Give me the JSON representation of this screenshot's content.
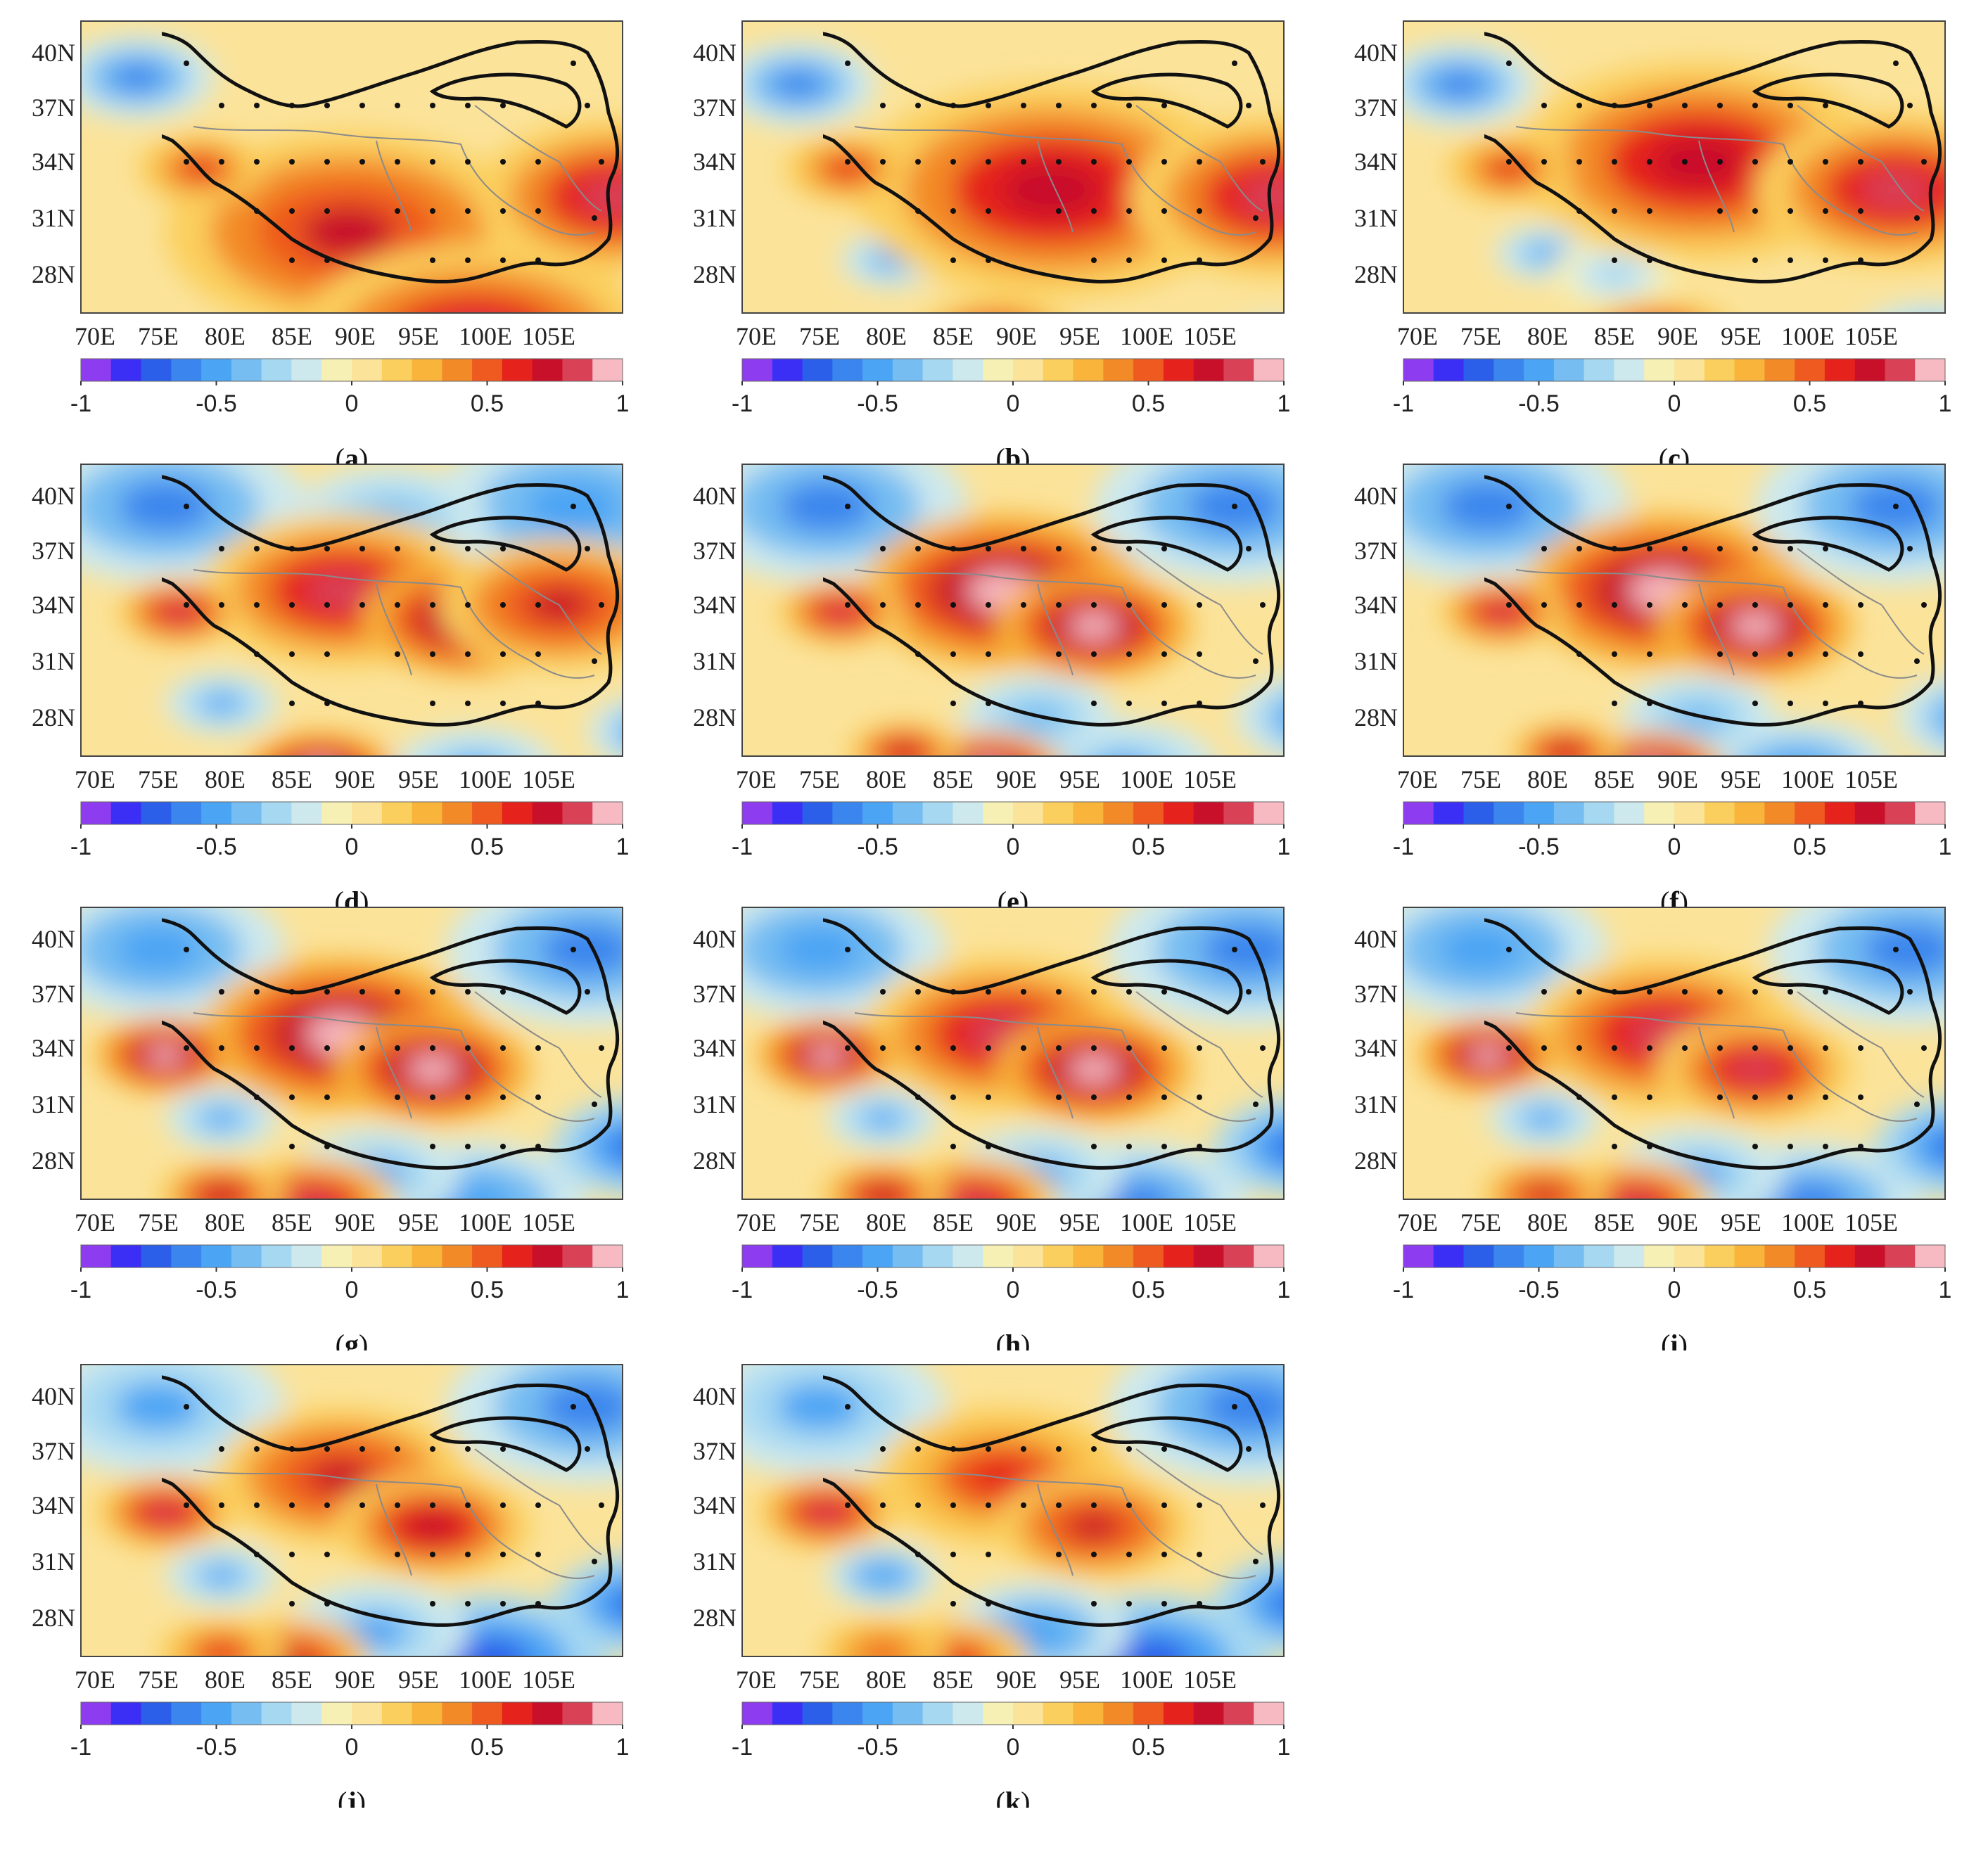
{
  "figure": {
    "lat_labels": [
      "40N",
      "37N",
      "34N",
      "31N",
      "28N"
    ],
    "lon_labels": [
      "70E",
      "75E",
      "80E",
      "85E",
      "90E",
      "95E",
      "100E",
      "105E"
    ],
    "colorbar": {
      "tick_labels": [
        "-1",
        "-0.5",
        "0",
        "0.5",
        "1"
      ],
      "range": [
        -1,
        1
      ],
      "colors": [
        "#8e3cf0",
        "#3b2ff5",
        "#2b5fe9",
        "#3b86ee",
        "#4ba4f4",
        "#76bdf2",
        "#a6d8f2",
        "#cde9ee",
        "#f6f0b4",
        "#fbe39a",
        "#fbcf5d",
        "#f8b43b",
        "#f38a28",
        "#ee5a1f",
        "#e5221c",
        "#c8102a",
        "#d94157",
        "#f7b9c2"
      ]
    },
    "panels": [
      {
        "label": "a",
        "hot": [
          [
            380,
            300,
            260,
            0.7
          ],
          [
            560,
            460,
            260,
            0.85
          ],
          [
            760,
            250,
            200,
            0.8
          ],
          [
            170,
            210,
            90,
            0.6
          ],
          [
            570,
            640,
            170,
            0.95
          ],
          [
            820,
            520,
            140,
            0.8
          ]
        ],
        "cold": [
          [
            80,
            80,
            110,
            0.6
          ],
          [
            200,
            300,
            70,
            0.4
          ],
          [
            830,
            330,
            80,
            0.3
          ]
        ]
      },
      {
        "label": "b",
        "hot": [
          [
            440,
            240,
            280,
            0.75
          ],
          [
            760,
            250,
            210,
            0.8
          ],
          [
            360,
            460,
            120,
            0.85
          ],
          [
            640,
            640,
            190,
            0.95
          ],
          [
            150,
            210,
            90,
            0.6
          ],
          [
            820,
            520,
            140,
            0.85
          ]
        ],
        "cold": [
          [
            80,
            90,
            110,
            0.6
          ],
          [
            210,
            340,
            70,
            0.5
          ],
          [
            760,
            470,
            80,
            0.45
          ]
        ]
      },
      {
        "label": "c",
        "hot": [
          [
            420,
            200,
            260,
            0.75
          ],
          [
            700,
            240,
            200,
            0.85
          ],
          [
            360,
            460,
            120,
            0.8
          ],
          [
            660,
            640,
            200,
            0.95
          ],
          [
            150,
            210,
            90,
            0.6
          ],
          [
            820,
            520,
            120,
            0.75
          ]
        ],
        "cold": [
          [
            80,
            90,
            110,
            0.6
          ],
          [
            200,
            330,
            70,
            0.5
          ],
          [
            750,
            460,
            110,
            0.45
          ],
          [
            300,
            360,
            90,
            0.3
          ]
        ]
      },
      {
        "label": "d",
        "hot": [
          [
            370,
            180,
            200,
            0.85
          ],
          [
            550,
            220,
            150,
            0.9
          ],
          [
            340,
            440,
            110,
            0.9
          ],
          [
            660,
            640,
            200,
            1.0
          ],
          [
            140,
            210,
            90,
            0.8
          ],
          [
            680,
            200,
            170,
            0.7
          ]
        ],
        "cold": [
          [
            120,
            60,
            200,
            0.6
          ],
          [
            700,
            60,
            200,
            0.55
          ],
          [
            200,
            340,
            80,
            0.45
          ],
          [
            560,
            440,
            120,
            0.45
          ],
          [
            820,
            380,
            100,
            0.6
          ],
          [
            440,
            80,
            140,
            0.4
          ]
        ]
      },
      {
        "label": "e",
        "hot": [
          [
            370,
            180,
            200,
            0.9
          ],
          [
            500,
            230,
            140,
            0.95
          ],
          [
            350,
            440,
            110,
            0.9
          ],
          [
            660,
            640,
            210,
            1.0
          ],
          [
            140,
            210,
            90,
            0.85
          ],
          [
            230,
            410,
            80,
            0.75
          ]
        ],
        "cold": [
          [
            120,
            60,
            200,
            0.6
          ],
          [
            700,
            60,
            200,
            0.6
          ],
          [
            540,
            440,
            140,
            0.5
          ],
          [
            820,
            360,
            120,
            0.6
          ],
          [
            420,
            360,
            110,
            0.35
          ]
        ]
      },
      {
        "label": "f",
        "hot": [
          [
            370,
            180,
            200,
            0.9
          ],
          [
            500,
            230,
            140,
            0.95
          ],
          [
            350,
            440,
            110,
            0.9
          ],
          [
            660,
            640,
            210,
            1.0
          ],
          [
            140,
            210,
            90,
            0.85
          ],
          [
            230,
            410,
            80,
            0.75
          ]
        ],
        "cold": [
          [
            120,
            60,
            200,
            0.6
          ],
          [
            700,
            60,
            200,
            0.6
          ],
          [
            560,
            440,
            140,
            0.55
          ],
          [
            820,
            360,
            120,
            0.65
          ],
          [
            420,
            360,
            110,
            0.4
          ]
        ]
      },
      {
        "label": "g",
        "hot": [
          [
            370,
            180,
            200,
            0.9
          ],
          [
            500,
            230,
            140,
            0.95
          ],
          [
            330,
            420,
            120,
            0.85
          ],
          [
            640,
            640,
            220,
            1.0
          ],
          [
            120,
            210,
            100,
            0.9
          ],
          [
            200,
            410,
            90,
            0.75
          ]
        ],
        "cold": [
          [
            110,
            60,
            180,
            0.55
          ],
          [
            720,
            60,
            200,
            0.6
          ],
          [
            560,
            420,
            160,
            0.55
          ],
          [
            800,
            340,
            130,
            0.7
          ],
          [
            420,
            380,
            120,
            0.45
          ],
          [
            200,
            300,
            80,
            0.5
          ]
        ]
      },
      {
        "label": "h",
        "hot": [
          [
            370,
            180,
            200,
            0.85
          ],
          [
            500,
            230,
            140,
            0.9
          ],
          [
            330,
            420,
            120,
            0.85
          ],
          [
            640,
            640,
            210,
            0.95
          ],
          [
            120,
            210,
            100,
            0.9
          ],
          [
            200,
            410,
            90,
            0.75
          ]
        ],
        "cold": [
          [
            110,
            60,
            180,
            0.55
          ],
          [
            720,
            60,
            200,
            0.65
          ],
          [
            560,
            420,
            160,
            0.6
          ],
          [
            800,
            340,
            130,
            0.7
          ],
          [
            420,
            380,
            120,
            0.5
          ],
          [
            200,
            300,
            80,
            0.5
          ]
        ]
      },
      {
        "label": "i",
        "hot": [
          [
            370,
            180,
            200,
            0.8
          ],
          [
            500,
            230,
            140,
            0.85
          ],
          [
            330,
            420,
            110,
            0.8
          ],
          [
            640,
            640,
            200,
            0.9
          ],
          [
            120,
            210,
            100,
            0.9
          ],
          [
            200,
            410,
            90,
            0.7
          ]
        ],
        "cold": [
          [
            110,
            60,
            180,
            0.55
          ],
          [
            720,
            60,
            200,
            0.65
          ],
          [
            580,
            420,
            160,
            0.65
          ],
          [
            800,
            340,
            130,
            0.7
          ],
          [
            420,
            380,
            120,
            0.5
          ],
          [
            200,
            300,
            80,
            0.5
          ]
        ]
      },
      {
        "label": "j",
        "hot": [
          [
            370,
            160,
            180,
            0.7
          ],
          [
            500,
            230,
            140,
            0.75
          ],
          [
            300,
            420,
            110,
            0.7
          ],
          [
            640,
            640,
            200,
            0.8
          ],
          [
            120,
            210,
            100,
            0.85
          ],
          [
            200,
            410,
            90,
            0.6
          ]
        ],
        "cold": [
          [
            110,
            60,
            180,
            0.5
          ],
          [
            720,
            60,
            200,
            0.65
          ],
          [
            580,
            420,
            170,
            0.7
          ],
          [
            800,
            340,
            130,
            0.7
          ],
          [
            420,
            380,
            130,
            0.5
          ],
          [
            200,
            300,
            80,
            0.5
          ]
        ]
      },
      {
        "label": "k",
        "hot": [
          [
            370,
            160,
            180,
            0.65
          ],
          [
            500,
            230,
            140,
            0.7
          ],
          [
            300,
            420,
            110,
            0.65
          ],
          [
            640,
            640,
            180,
            0.7
          ],
          [
            120,
            210,
            100,
            0.8
          ],
          [
            200,
            410,
            90,
            0.55
          ]
        ],
        "cold": [
          [
            110,
            60,
            180,
            0.5
          ],
          [
            720,
            60,
            200,
            0.65
          ],
          [
            580,
            420,
            170,
            0.75
          ],
          [
            800,
            340,
            130,
            0.7
          ],
          [
            420,
            380,
            130,
            0.55
          ],
          [
            200,
            300,
            80,
            0.55
          ]
        ]
      }
    ]
  }
}
